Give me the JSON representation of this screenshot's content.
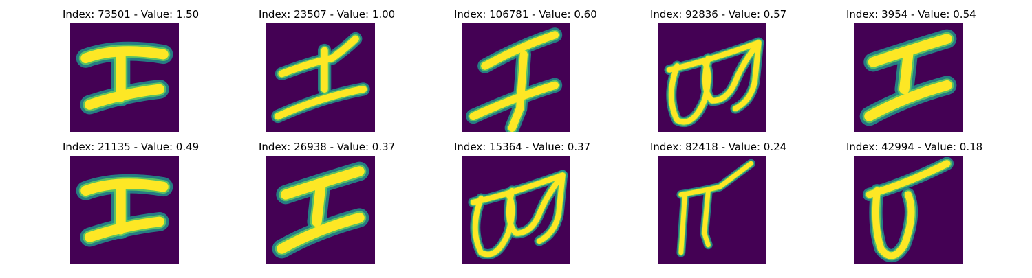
{
  "chart_data": {
    "type": "image-grid",
    "colormap": "viridis",
    "colors": {
      "background": "#440154",
      "stroke_edge": "#21918c",
      "stroke_mid": "#5ec962",
      "stroke_core": "#fde725"
    },
    "panels": [
      {
        "index": 73501,
        "value": 1.5,
        "title": "Index: 73501 - Value: 1.50",
        "glyph": "bold-double-bar"
      },
      {
        "index": 23507,
        "value": 1.0,
        "title": "Index: 23507 - Value: 1.00",
        "glyph": "slanted-double-bar"
      },
      {
        "index": 106781,
        "value": 0.6,
        "title": "Index: 106781 - Value: 0.60",
        "glyph": "slanted-double-bar-with-tail"
      },
      {
        "index": 92836,
        "value": 0.57,
        "title": "Index: 92836 - Value: 0.57",
        "glyph": "double-loop"
      },
      {
        "index": 3954,
        "value": 0.54,
        "title": "Index: 3954 - Value: 0.54",
        "glyph": "bold-slanted-double-bar"
      },
      {
        "index": 21135,
        "value": 0.49,
        "title": "Index: 21135 - Value: 0.49",
        "glyph": "bold-double-bar"
      },
      {
        "index": 26938,
        "value": 0.37,
        "title": "Index: 26938 - Value: 0.37",
        "glyph": "bold-slanted-double-bar"
      },
      {
        "index": 15364,
        "value": 0.37,
        "title": "Index: 15364 - Value: 0.37",
        "glyph": "double-loop"
      },
      {
        "index": 82418,
        "value": 0.24,
        "title": "Index: 82418 - Value: 0.24",
        "glyph": "pi-shape"
      },
      {
        "index": 42994,
        "value": 0.18,
        "title": "Index: 42994 - Value: 0.18",
        "glyph": "loop-with-bar"
      }
    ]
  }
}
